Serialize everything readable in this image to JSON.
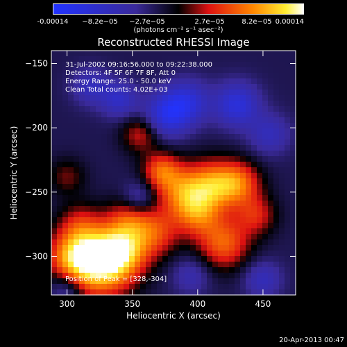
{
  "colorbar": {
    "ticks": [
      "-0.00014",
      "−8.2e−05",
      "−2.7e−05",
      "2.7e−05",
      "8.2e−05",
      "0.00014"
    ],
    "unit": "(photons cm⁻² s⁻¹ asec⁻²)",
    "colors": {
      "blue": "#2233ff",
      "black": "#000000",
      "red": "#dd1111",
      "orange": "#ff8800",
      "yellow": "#ffee33",
      "white": "#ffffff"
    }
  },
  "chart_data": {
    "type": "heatmap",
    "title": "Reconstructed RHESSI Image",
    "xlabel": "Heliocentric X (arcsec)",
    "ylabel": "Heliocentric Y (arcsec)",
    "xlim": [
      288,
      475
    ],
    "ylim": [
      -330,
      -140
    ],
    "xticks": [
      300,
      350,
      400,
      450
    ],
    "yticks": [
      -150,
      -200,
      -250,
      -300
    ],
    "clim": [
      -0.00014,
      0.00014
    ],
    "grid": false,
    "peak": [
      328,
      -304
    ],
    "sources": [
      {
        "x": 325,
        "y": -306,
        "value": 0.00014,
        "width": 18
      },
      {
        "x": 305,
        "y": -300,
        "value": 9e-05,
        "width": 14
      },
      {
        "x": 342,
        "y": -295,
        "value": 0.0001,
        "width": 14
      },
      {
        "x": 348,
        "y": -270,
        "value": 6e-05,
        "width": 12
      },
      {
        "x": 368,
        "y": -282,
        "value": 7e-05,
        "width": 13
      },
      {
        "x": 388,
        "y": -250,
        "value": 9e-05,
        "width": 14
      },
      {
        "x": 412,
        "y": -245,
        "value": 0.0001,
        "width": 14
      },
      {
        "x": 432,
        "y": -243,
        "value": 8e-05,
        "width": 12
      },
      {
        "x": 400,
        "y": -268,
        "value": 7e-05,
        "width": 12
      },
      {
        "x": 420,
        "y": -290,
        "value": 9e-05,
        "width": 14
      },
      {
        "x": 445,
        "y": -268,
        "value": 6e-05,
        "width": 11
      },
      {
        "x": 372,
        "y": -233,
        "value": 8e-05,
        "width": 10
      },
      {
        "x": 356,
        "y": -205,
        "value": 6e-05,
        "width": 10
      },
      {
        "x": 300,
        "y": -238,
        "value": 4e-05,
        "width": 10
      },
      {
        "x": 310,
        "y": -275,
        "value": 5e-05,
        "width": 12
      },
      {
        "x": 376,
        "y": -190,
        "value": -8e-05,
        "width": 12
      },
      {
        "x": 392,
        "y": -180,
        "value": -7e-05,
        "width": 12
      },
      {
        "x": 340,
        "y": -178,
        "value": -6e-05,
        "width": 10
      },
      {
        "x": 430,
        "y": -182,
        "value": -8e-05,
        "width": 12
      },
      {
        "x": 455,
        "y": -205,
        "value": -5e-05,
        "width": 11
      },
      {
        "x": 318,
        "y": -168,
        "value": -5e-05,
        "width": 10
      },
      {
        "x": 355,
        "y": -255,
        "value": -5e-05,
        "width": 9
      },
      {
        "x": 395,
        "y": -315,
        "value": -4e-05,
        "width": 10
      },
      {
        "x": 450,
        "y": -318,
        "value": -5e-05,
        "width": 10
      },
      {
        "x": 300,
        "y": -325,
        "value": -5e-05,
        "width": 9
      }
    ]
  },
  "info": {
    "line1": "31-Jul-2002 09:16:56.000 to 09:22:38.000",
    "line2": "Detectors: 4F 5F 6F 7F 8F, Att 0",
    "line3": "Energy Range: 25.0 - 50.0 keV",
    "line4": "Clean    Total counts: 4.02E+03"
  },
  "peak_label": "Position of Peak = [328,-304]",
  "footer": "20-Apr-2013 00:47"
}
